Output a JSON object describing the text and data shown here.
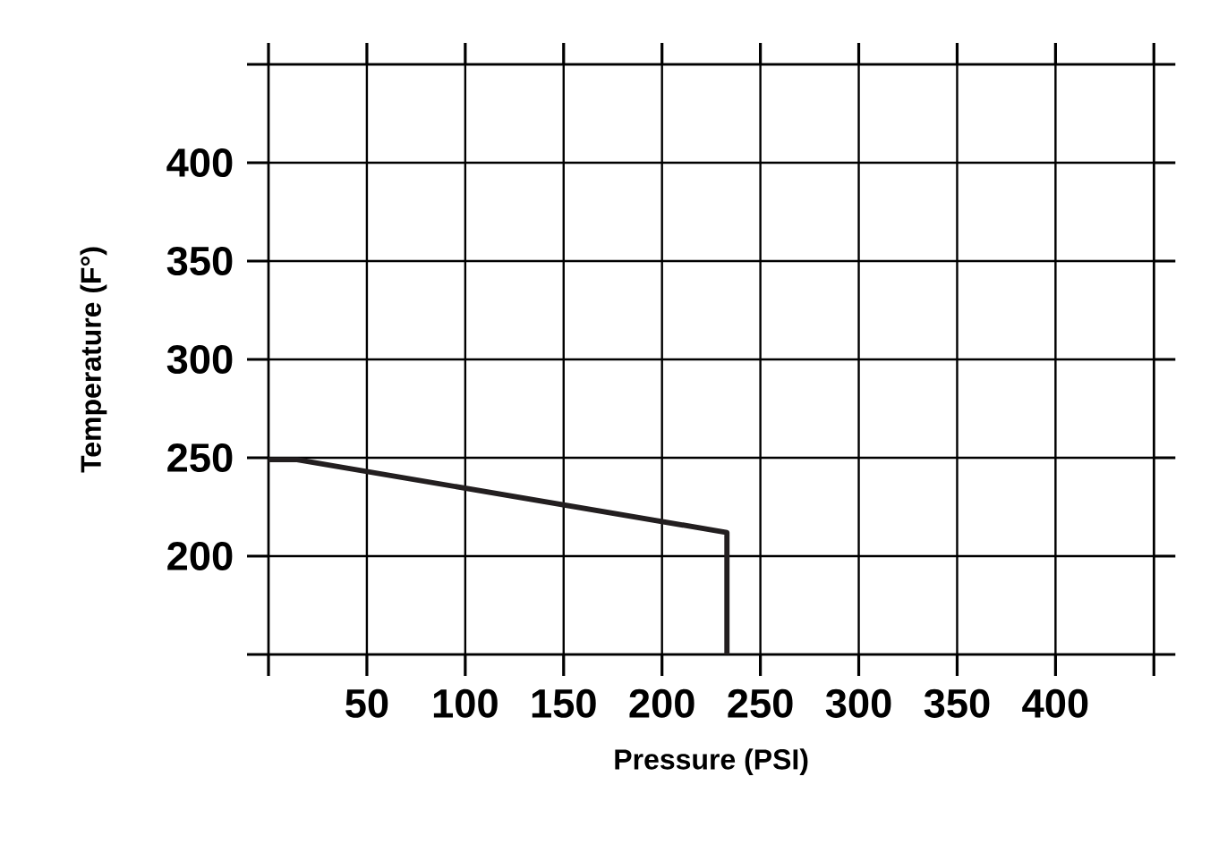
{
  "chart_data": {
    "type": "line",
    "xlabel": "Pressure (PSI)",
    "ylabel": "Temperature (F°)",
    "xlim": [
      0,
      450
    ],
    "ylim": [
      150,
      450
    ],
    "xticks": [
      {
        "value": 0,
        "label": null
      },
      50,
      100,
      150,
      200,
      250,
      300,
      350,
      400,
      {
        "value": 450,
        "label": null
      }
    ],
    "yticks": [
      {
        "value": 150,
        "label": null
      },
      200,
      250,
      300,
      350,
      400,
      {
        "value": 450,
        "label": null
      }
    ],
    "grid": true,
    "series": [
      {
        "color": "#231f20",
        "x": [
          0,
          14.5,
          233,
          233
        ],
        "values": [
          249,
          249,
          212,
          150
        ]
      }
    ]
  }
}
